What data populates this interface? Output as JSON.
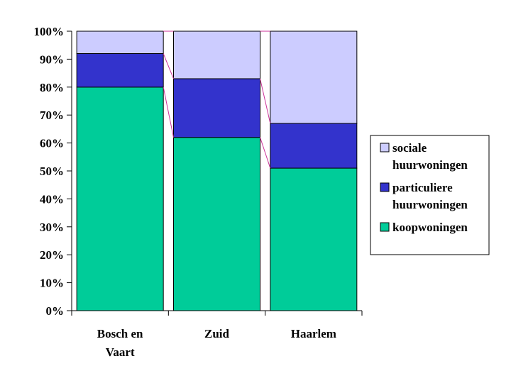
{
  "chart_data": {
    "type": "bar",
    "stacked": true,
    "percent_stacked": true,
    "categories": [
      [
        "Bosch en",
        "Vaart"
      ],
      [
        "Zuid"
      ],
      [
        "Haarlem"
      ]
    ],
    "series": [
      {
        "name": "koopwoningen",
        "values": [
          80,
          62,
          51
        ],
        "color": "#00CC99"
      },
      {
        "name": "particuliere huurwoningen",
        "name_lines": [
          "particuliere",
          "huurwoningen"
        ],
        "values": [
          12,
          21,
          16
        ],
        "color": "#3333CC"
      },
      {
        "name": "sociale huurwoningen",
        "name_lines": [
          "sociale",
          "huurwoningen"
        ],
        "values": [
          8,
          17,
          33
        ],
        "color": "#CCCCFF"
      }
    ],
    "ylim": [
      0,
      100
    ],
    "yticks": [
      "0%",
      "10%",
      "20%",
      "30%",
      "40%",
      "50%",
      "60%",
      "70%",
      "80%",
      "90%",
      "100%"
    ],
    "series_lines_color": "#CC3399",
    "grid": false,
    "legend_position": "right"
  }
}
